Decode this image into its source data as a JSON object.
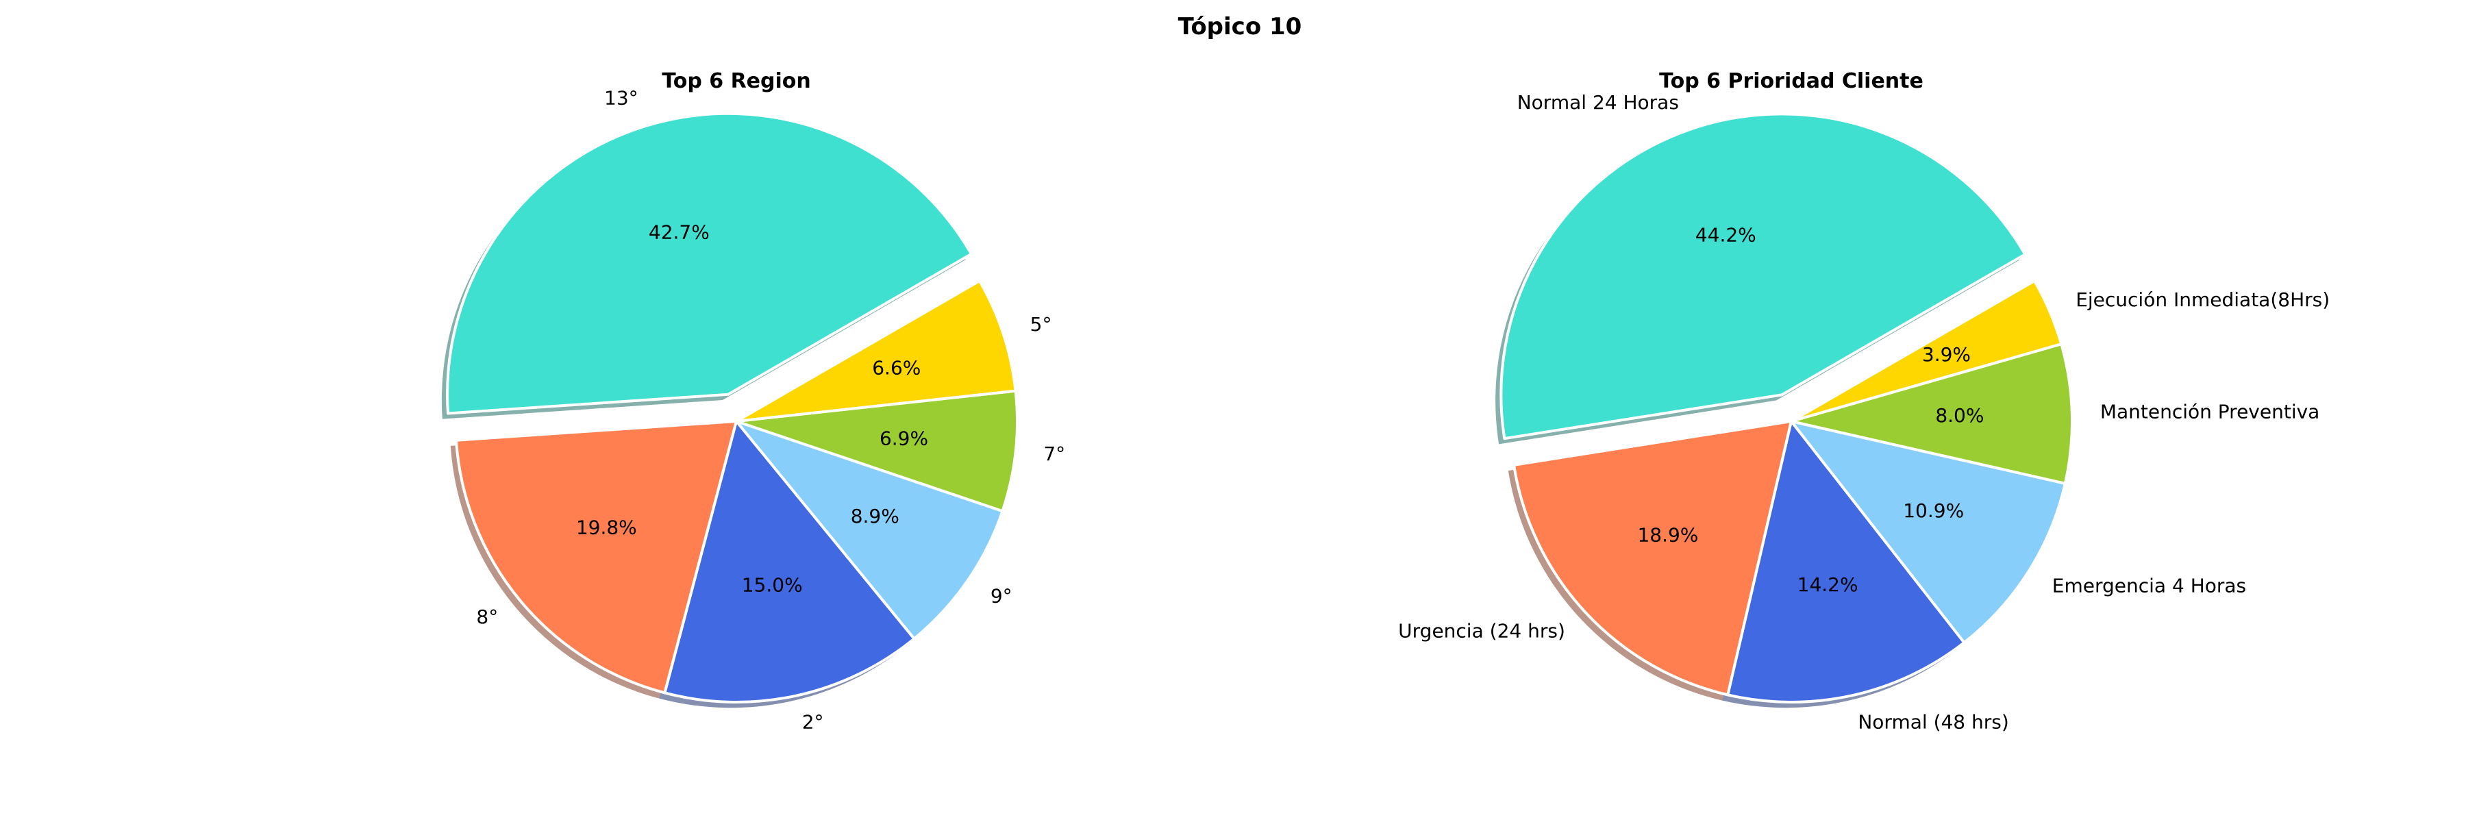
{
  "figure_title": "Tópico 10",
  "chart_data": [
    {
      "type": "pie",
      "title": "Top 6 Region",
      "categories": [
        "13°",
        "8°",
        "2°",
        "9°",
        "7°",
        "5°"
      ],
      "values": [
        42.7,
        19.8,
        15.0,
        8.9,
        6.9,
        6.6
      ],
      "percent_labels": [
        "42.7%",
        "19.8%",
        "15.0%",
        "8.9%",
        "6.9%",
        "6.6%"
      ],
      "colors": [
        "#40E0D0",
        "#FF7F50",
        "#4169E1",
        "#87CEFA",
        "#9ACD32",
        "#FFD700"
      ],
      "explode": [
        0.1,
        0,
        0,
        0,
        0,
        0
      ],
      "shadow": true
    },
    {
      "type": "pie",
      "title": "Top 6 Prioridad Cliente",
      "categories": [
        "Normal 24 Horas",
        "Urgencia (24 hrs)",
        "Normal (48 hrs)",
        "Emergencia 4 Horas",
        "Mantención Preventiva",
        "Ejecución Inmediata(8Hrs)"
      ],
      "values": [
        44.2,
        18.9,
        14.2,
        10.9,
        8.0,
        3.9
      ],
      "percent_labels": [
        "44.2%",
        "18.9%",
        "14.2%",
        "10.9%",
        "8.0%",
        "3.9%"
      ],
      "colors": [
        "#40E0D0",
        "#FF7F50",
        "#4169E1",
        "#87CEFA",
        "#9ACD32",
        "#FFD700"
      ],
      "explode": [
        0.1,
        0,
        0,
        0,
        0,
        0
      ],
      "shadow": true
    }
  ]
}
